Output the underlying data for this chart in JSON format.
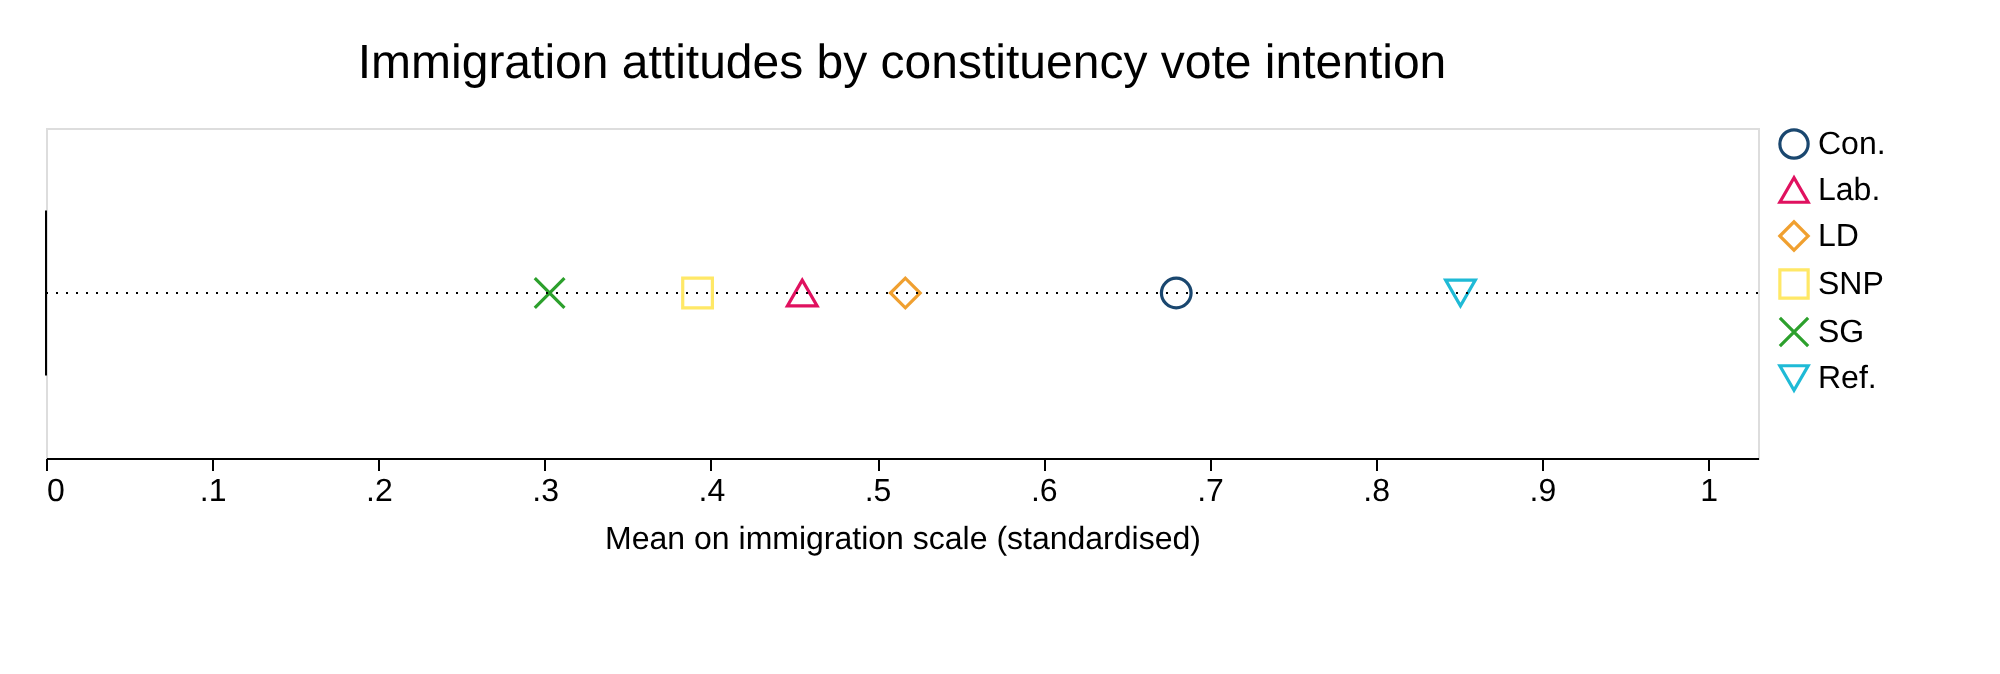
{
  "chart_data": {
    "type": "scatter",
    "title": "Immigration attitudes by constituency vote intention",
    "xlabel": "Mean on immigration scale (standardised)",
    "categories": [
      null
    ],
    "series": [
      {
        "name": "Con.",
        "color": "#1a476f",
        "marker": "circle",
        "values": [
          0.68
        ]
      },
      {
        "name": "Lab.",
        "color": "#e0115f",
        "marker": "triangle",
        "values": [
          0.455
        ]
      },
      {
        "name": "LD",
        "color": "#f0a030",
        "marker": "diamond",
        "values": [
          0.517
        ]
      },
      {
        "name": "SNP",
        "color": "#ffe866",
        "marker": "square",
        "values": [
          0.392
        ]
      },
      {
        "name": "SG",
        "color": "#2ca02c",
        "marker": "x",
        "values": [
          0.303
        ]
      },
      {
        "name": "Ref.",
        "color": "#1fbad6",
        "marker": "triangle_down",
        "values": [
          0.851
        ]
      }
    ],
    "orientation": "horizontal",
    "xlim": [
      0,
      1.03
    ],
    "xticks": [
      {
        "value": 0,
        "label": "0"
      },
      {
        "value": 0.1,
        "label": ".1"
      },
      {
        "value": 0.2,
        "label": ".2"
      },
      {
        "value": 0.3,
        "label": ".3"
      },
      {
        "value": 0.4,
        "label": ".4"
      },
      {
        "value": 0.5,
        "label": ".5"
      },
      {
        "value": 0.6,
        "label": ".6"
      },
      {
        "value": 0.7,
        "label": ".7"
      },
      {
        "value": 0.8,
        "label": ".8"
      },
      {
        "value": 0.9,
        "label": ".9"
      },
      {
        "value": 1,
        "label": "1"
      }
    ],
    "ref_lines": [
      {
        "axis": "y",
        "value": null,
        "line_style": "dotted",
        "color": "#000000"
      }
    ],
    "grid": false,
    "legend": "top right"
  }
}
